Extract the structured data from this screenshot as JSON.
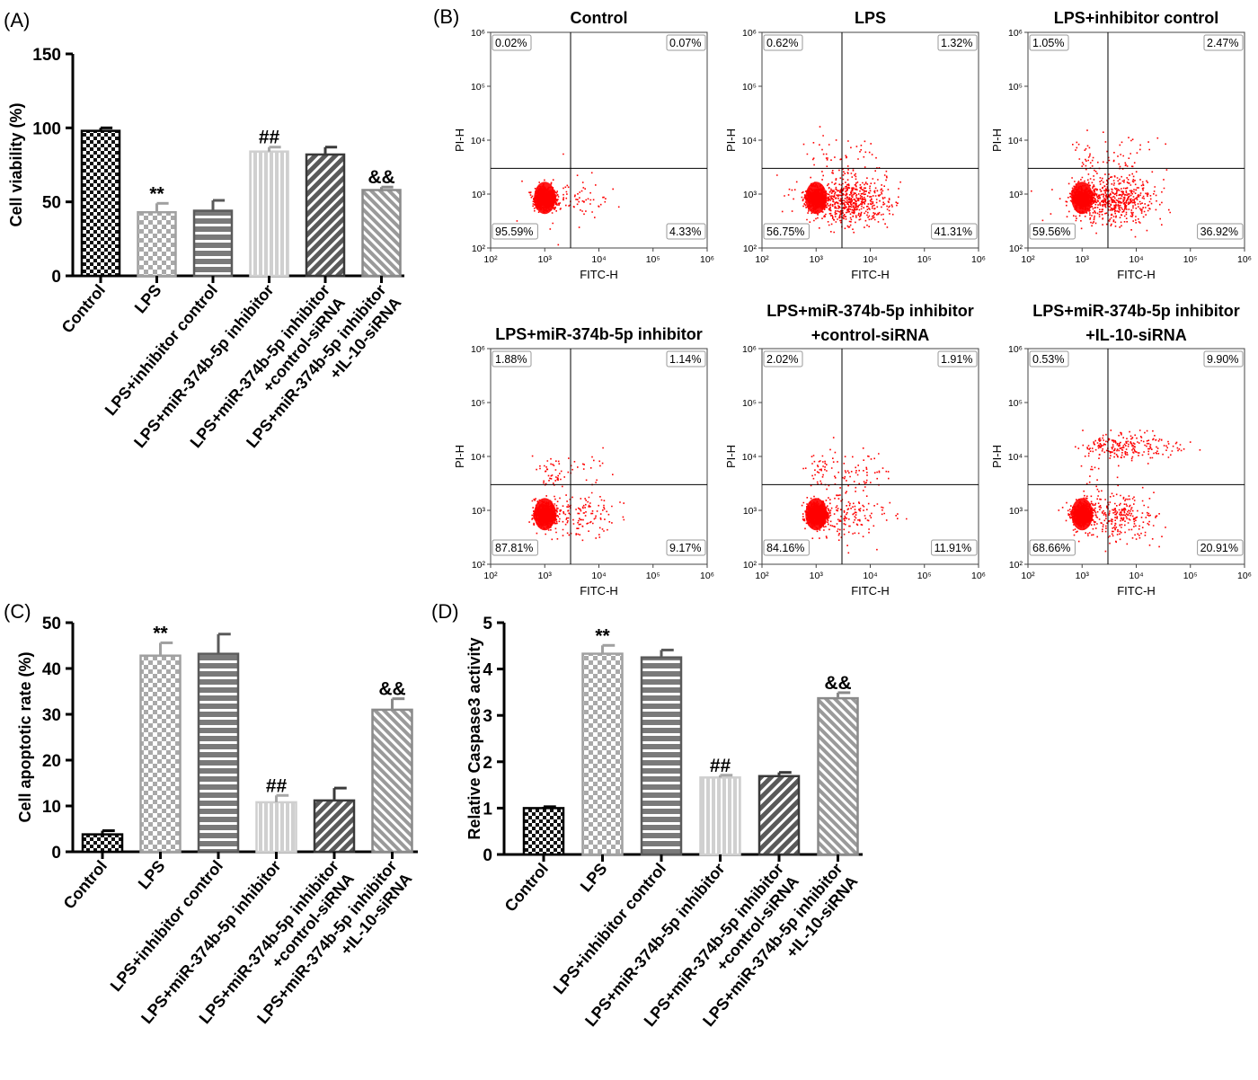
{
  "panel_labels": {
    "A": "(A)",
    "B": "(B)",
    "C": "(C)",
    "D": "(D)"
  },
  "chart_data": [
    {
      "panel": "A",
      "type": "bar",
      "ylabel": "Cell viability (%)",
      "ylim": [
        0,
        150
      ],
      "yticks": [
        0,
        50,
        100,
        150
      ],
      "categories": [
        [
          "Control"
        ],
        [
          "LPS"
        ],
        [
          "LPS+inhibitor control"
        ],
        [
          "LPS+miR-374b-5p inhibitor"
        ],
        [
          "LPS+miR-374b-5p inhibitor",
          "+control-siRNA"
        ],
        [
          "LPS+miR-374b-5p inhibitor",
          "+IL-10-siRNA"
        ]
      ],
      "values": [
        98,
        43,
        44,
        84,
        82,
        58
      ],
      "errors": [
        2,
        6,
        7,
        3,
        5,
        2
      ],
      "annotations": [
        "",
        "**",
        "",
        "##",
        "",
        "&&"
      ]
    },
    {
      "panel": "B",
      "type": "scatter",
      "xlabel": "FITC-H",
      "ylabel": "PI-H",
      "axis_scale": "log",
      "range": [
        100,
        1000000
      ],
      "tick_labels": [
        "10²",
        "10³",
        "10⁴",
        "10⁵",
        "10⁶"
      ],
      "gate": [
        3000,
        3000
      ],
      "plots": [
        {
          "title": [
            "Control"
          ],
          "ul": "0.02%",
          "ur": "0.07%",
          "ll": "95.59%",
          "lr": "4.33%"
        },
        {
          "title": [
            "LPS"
          ],
          "ul": "0.62%",
          "ur": "1.32%",
          "ll": "56.75%",
          "lr": "41.31%"
        },
        {
          "title": [
            "LPS+inhibitor control"
          ],
          "ul": "1.05%",
          "ur": "2.47%",
          "ll": "59.56%",
          "lr": "36.92%"
        },
        {
          "title": [
            "LPS+miR-374b-5p inhibitor"
          ],
          "ul": "1.88%",
          "ur": "1.14%",
          "ll": "87.81%",
          "lr": "9.17%"
        },
        {
          "title": [
            "LPS+miR-374b-5p inhibitor",
            "+control-siRNA"
          ],
          "ul": "2.02%",
          "ur": "1.91%",
          "ll": "84.16%",
          "lr": "11.91%"
        },
        {
          "title": [
            "LPS+miR-374b-5p inhibitor",
            "+IL-10-siRNA"
          ],
          "ul": "0.53%",
          "ur": "9.90%",
          "ll": "68.66%",
          "lr": "20.91%"
        }
      ]
    },
    {
      "panel": "C",
      "type": "bar",
      "ylabel": "Cell apoptotic rate (%)",
      "ylim": [
        0,
        50
      ],
      "yticks": [
        0,
        10,
        20,
        30,
        40,
        50
      ],
      "categories": [
        [
          "Control"
        ],
        [
          "LPS"
        ],
        [
          "LPS+inhibitor control"
        ],
        [
          "LPS+miR-374b-5p inhibitor"
        ],
        [
          "LPS+miR-374b-5p inhibitor",
          "+control-siRNA"
        ],
        [
          "LPS+miR-374b-5p inhibitor",
          "+IL-10-siRNA"
        ]
      ],
      "values": [
        3.8,
        42.8,
        43.2,
        10.8,
        11.2,
        31.0
      ],
      "errors": [
        0.8,
        2.8,
        4.3,
        1.5,
        2.7,
        2.4
      ],
      "annotations": [
        "",
        "**",
        "",
        "##",
        "",
        "&&"
      ]
    },
    {
      "panel": "D",
      "type": "bar",
      "ylabel": "Relative Caspase3 activity",
      "ylim": [
        0,
        5
      ],
      "yticks": [
        0,
        1,
        2,
        3,
        4,
        5
      ],
      "categories": [
        [
          "Control"
        ],
        [
          "LPS"
        ],
        [
          "LPS+inhibitor control"
        ],
        [
          "LPS+miR-374b-5p inhibitor"
        ],
        [
          "LPS+miR-374b-5p inhibitor",
          "+control-siRNA"
        ],
        [
          "LPS+miR-374b-5p inhibitor",
          "+IL-10-siRNA"
        ]
      ],
      "values": [
        1.0,
        4.33,
        4.25,
        1.66,
        1.69,
        3.37
      ],
      "errors": [
        0.03,
        0.18,
        0.16,
        0.05,
        0.08,
        0.12
      ],
      "annotations": [
        "",
        "**",
        "",
        "##",
        "",
        "&&"
      ]
    }
  ]
}
